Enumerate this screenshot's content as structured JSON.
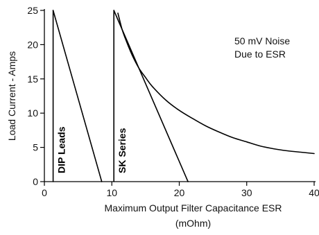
{
  "chart_data": {
    "type": "line",
    "xlabel_line1": "Maximum Output Filter Capacitance ESR",
    "xlabel_line2": "(mOhm)",
    "ylabel": "Load Current - Amps",
    "xlim": [
      0,
      40
    ],
    "ylim": [
      0,
      25
    ],
    "xticks": [
      0,
      10,
      20,
      30,
      40
    ],
    "yticks": [
      0,
      5,
      10,
      15,
      20,
      25
    ],
    "annotation_lines": [
      "50 mV Noise",
      "Due to ESR"
    ],
    "series": [
      {
        "label": "DIP Leads",
        "lines": [
          [
            [
              1.3,
              0
            ],
            [
              1.3,
              25
            ]
          ],
          [
            [
              1.3,
              25
            ],
            [
              8.5,
              0
            ]
          ]
        ]
      },
      {
        "label": "SK Series",
        "lines": [
          [
            [
              10.3,
              0
            ],
            [
              10.3,
              25
            ]
          ],
          [
            [
              10.3,
              25
            ],
            [
              21.3,
              0
            ]
          ]
        ]
      },
      {
        "label": "",
        "curve": [
          [
            10.9,
            24.6
          ],
          [
            11.5,
            22.3
          ],
          [
            12,
            20.9
          ],
          [
            13,
            18.5
          ],
          [
            14,
            16.6
          ],
          [
            15,
            15.2
          ],
          [
            16,
            13.9
          ],
          [
            18,
            11.9
          ],
          [
            20,
            10.4
          ],
          [
            22,
            9.2
          ],
          [
            24,
            8.1
          ],
          [
            26,
            7.2
          ],
          [
            28,
            6.4
          ],
          [
            30,
            5.8
          ],
          [
            32,
            5.2
          ],
          [
            34,
            4.8
          ],
          [
            36,
            4.5
          ],
          [
            38,
            4.3
          ],
          [
            40,
            4.1
          ]
        ]
      }
    ]
  }
}
